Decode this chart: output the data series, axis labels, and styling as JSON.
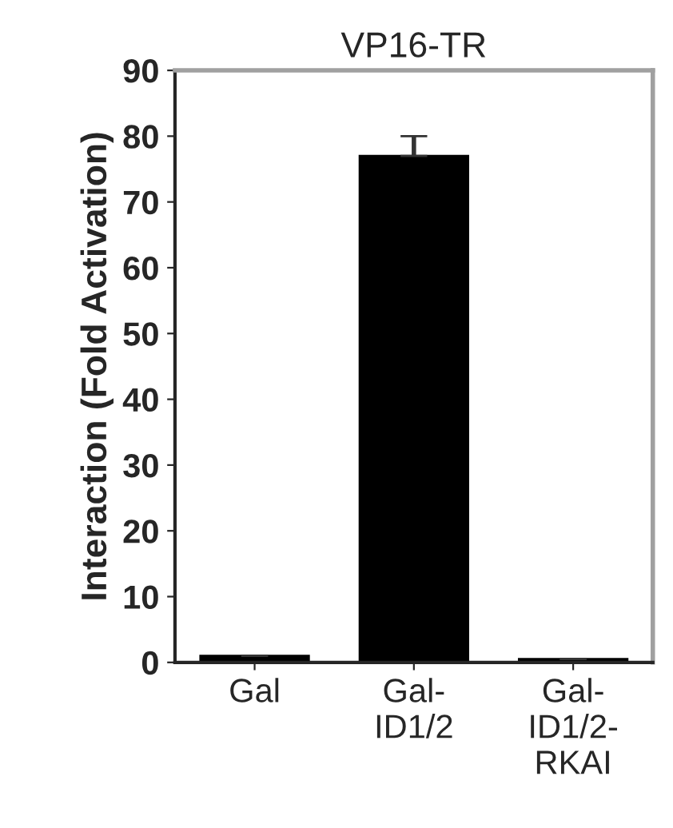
{
  "chart_data": {
    "type": "bar",
    "title": "VP16-TR",
    "ylabel": "Interaction (Fold Activation)",
    "categories": [
      "Gal",
      "Gal-\nID1/2",
      "Gal-\nID1/2-\nRKAI"
    ],
    "values": [
      1,
      77,
      0.5
    ],
    "errors": [
      null,
      3,
      null
    ],
    "color": "#000000",
    "ylim": [
      0,
      90
    ],
    "yticks": [
      0,
      10,
      20,
      30,
      40,
      50,
      60,
      70,
      80,
      90
    ],
    "grid": false
  }
}
